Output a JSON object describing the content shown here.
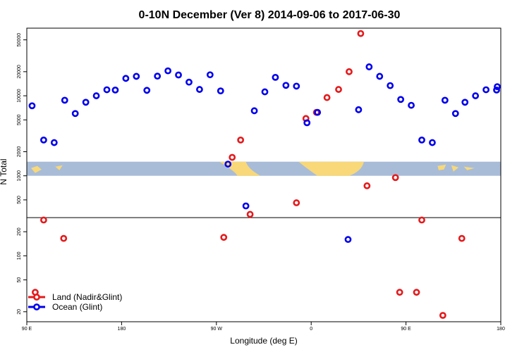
{
  "chart_data": {
    "type": "scatter",
    "title": "0-10N December (Ver 8)   2014-09-06 to 2017-06-30",
    "xlabel": "Longitude (deg E)",
    "ylabel": "N Total",
    "x_tick_labels": [
      "90 E",
      "180",
      "90 W",
      "0",
      "90 E",
      "180"
    ],
    "x_tick_values": [
      90,
      180,
      270,
      360,
      450,
      540
    ],
    "xlim": [
      90,
      540
    ],
    "yscale": "log",
    "ylim": [
      15,
      70000
    ],
    "y_ticks": [
      20,
      50,
      100,
      200,
      500,
      1000,
      2000,
      5000,
      10000,
      20000,
      50000
    ],
    "y_tick_labels": [
      "20",
      "50",
      "100",
      "200",
      "500",
      "1000",
      "2000",
      "5000",
      "10000",
      "20000",
      "50000"
    ],
    "y_break_value": 300,
    "legend_position": "bottom-left",
    "series": [
      {
        "name": "Land (Nadir&Glint)",
        "color": "#e41a1c",
        "x": [
          98,
          106,
          125,
          277,
          285,
          293,
          302,
          346,
          355,
          365,
          375,
          386,
          396,
          407,
          413,
          440,
          444,
          460,
          465,
          485,
          503
        ],
        "y": [
          35,
          280,
          165,
          170,
          1700,
          2800,
          330,
          460,
          5200,
          6200,
          9500,
          12000,
          20000,
          60000,
          750,
          950,
          35,
          35,
          280,
          18,
          165
        ]
      },
      {
        "name": "Ocean (Glint)",
        "color": "#0000ee",
        "x": [
          95,
          106,
          116,
          126,
          136,
          146,
          156,
          166,
          174,
          184,
          194,
          204,
          214,
          224,
          234,
          244,
          254,
          264,
          274,
          281,
          298,
          306,
          316,
          326,
          336,
          346,
          356,
          366,
          395,
          405,
          415,
          425,
          435,
          445,
          455,
          465,
          475,
          487,
          497,
          506,
          516,
          526,
          536,
          546
        ],
        "y": [
          7500,
          2800,
          2600,
          8800,
          6000,
          8300,
          10000,
          11900,
          11800,
          16500,
          17500,
          11700,
          17600,
          20500,
          18200,
          14800,
          12000,
          18300,
          11500,
          1400,
          420,
          6500,
          11200,
          17000,
          13500,
          13200,
          4600,
          6200,
          160,
          6700,
          23000,
          17500,
          13400,
          9000,
          7600,
          2800,
          2600,
          8800,
          6000,
          8300,
          10000,
          11900,
          11800,
          13000
        ]
      }
    ],
    "background_band": {
      "description": "land/ocean strip map between y=1000 and y=1500",
      "ymin": 1000,
      "ymax": 1500,
      "ocean_color": "#a8bcd8",
      "land_color": "#f8d878"
    }
  }
}
